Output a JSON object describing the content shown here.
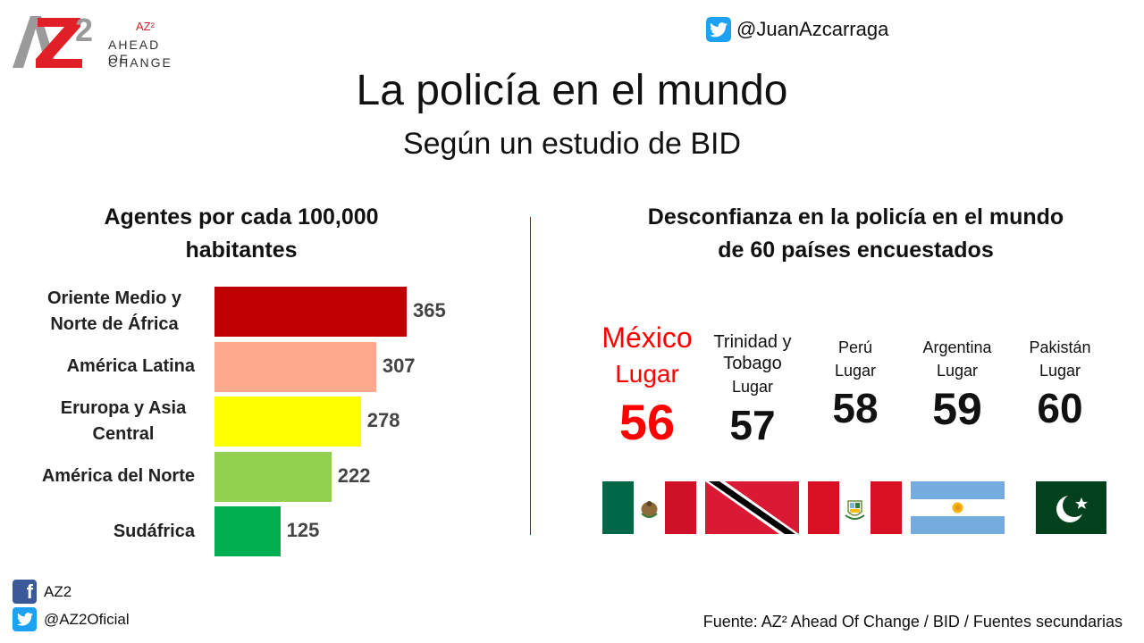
{
  "logo": {
    "superscript": "AZ²",
    "line1": "AHEAD OF",
    "line2": "CHANGE"
  },
  "twitter_header": {
    "handle": "@JuanAzcarraga",
    "icon": "twitter-icon"
  },
  "title": "La policía en el mundo",
  "subtitle": "Según un estudio de BID",
  "left_section": {
    "title_line1": "Agentes por cada 100,000",
    "title_line2": "habitantes"
  },
  "right_section": {
    "title_line1": "Desconfianza en la policía en el mundo",
    "title_line2": "de 60 países encuestados"
  },
  "chart_data": {
    "type": "bar",
    "orientation": "horizontal",
    "title": "Agentes por cada 100,000 habitantes",
    "categories": [
      "Oriente Medio y Norte de África",
      "América Latina",
      "Eruropa y Asia Central",
      "América del Norte",
      "Sudáfrica"
    ],
    "values": [
      365,
      307,
      278,
      222,
      125
    ],
    "value_labels": [
      "365",
      "307",
      "278",
      "222",
      "125"
    ],
    "colors": [
      "#c00000",
      "#ffa98c",
      "#ffff00",
      "#92d050",
      "#00b050"
    ],
    "grid": false,
    "legend": "none"
  },
  "ranking": [
    {
      "country": "México",
      "lugar": "Lugar",
      "rank": "56",
      "highlight": true,
      "flag": "mexico-flag"
    },
    {
      "country": "Trinidad y Tobago",
      "lugar": "Lugar",
      "rank": "57",
      "highlight": false,
      "flag": "trinidad-tobago-flag"
    },
    {
      "country": "Perú",
      "lugar": "Lugar",
      "rank": "58",
      "highlight": false,
      "flag": "peru-flag"
    },
    {
      "country": "Argentina",
      "lugar": "Lugar",
      "rank": "59",
      "highlight": false,
      "flag": "argentina-flag"
    },
    {
      "country": "Pakistán",
      "lugar": "Lugar",
      "rank": "60",
      "highlight": false,
      "flag": "pakistan-flag"
    }
  ],
  "highlight_color": "#ff0000",
  "social": {
    "facebook": "AZ2",
    "twitter": "@AZ2Oficial"
  },
  "source": "Fuente: AZ² Ahead Of Change / BID / Fuentes secundarias"
}
